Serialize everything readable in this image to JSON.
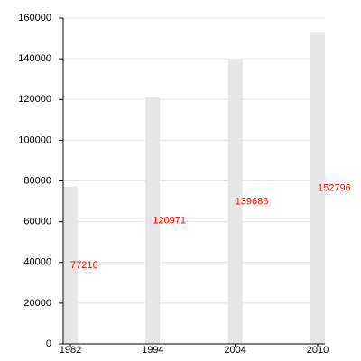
{
  "chart_data": {
    "type": "bar",
    "categories": [
      "1982",
      "1994",
      "2004",
      "2010"
    ],
    "values": [
      77216,
      120971,
      139686,
      152796
    ],
    "color": "#e6e6e6",
    "label_color": "#ff0000",
    "ylim": [
      0,
      160000
    ],
    "yticks": [
      0,
      20000,
      40000,
      60000,
      80000,
      100000,
      120000,
      140000,
      160000
    ],
    "grid": true
  }
}
